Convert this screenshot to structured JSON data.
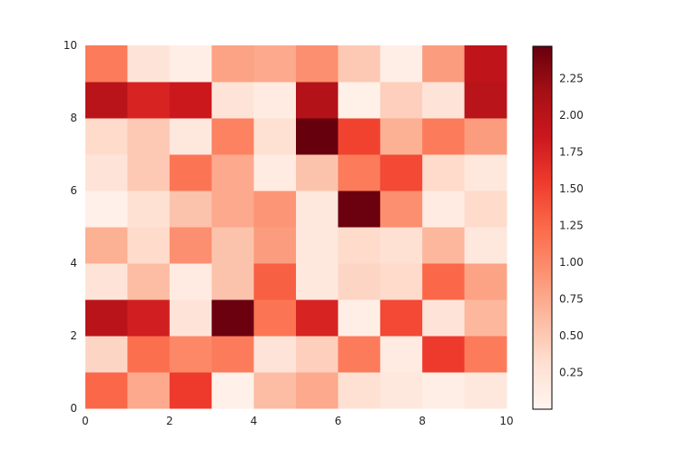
{
  "chart_data": {
    "type": "heatmap",
    "title": "",
    "xlabel": "",
    "ylabel": "",
    "xlim": [
      0,
      10
    ],
    "ylim": [
      0,
      10
    ],
    "x_ticks": [
      "0",
      "2",
      "4",
      "6",
      "8",
      "10"
    ],
    "y_ticks": [
      "0",
      "2",
      "4",
      "6",
      "8",
      "10"
    ],
    "colormap": "Reds",
    "colormap_stops": [
      "#fff5f0",
      "#fee0d2",
      "#fcbba1",
      "#fc9272",
      "#fb6a4a",
      "#ef3b2c",
      "#cb181d",
      "#a50f15",
      "#67000d"
    ],
    "vmin": 0,
    "vmax": 2.47,
    "colorbar_ticks": [
      "0.25",
      "0.50",
      "0.75",
      "1.00",
      "1.25",
      "1.50",
      "1.75",
      "2.00",
      "2.25"
    ],
    "z_rows_from_bottom": [
      [
        1.25,
        0.75,
        1.55,
        0.07,
        0.6,
        0.75,
        0.3,
        0.2,
        0.1,
        0.2
      ],
      [
        0.4,
        1.2,
        1.0,
        1.1,
        0.25,
        0.45,
        1.1,
        0.15,
        1.55,
        1.1
      ],
      [
        2.0,
        1.8,
        0.25,
        2.45,
        1.15,
        1.75,
        0.1,
        1.45,
        0.25,
        0.65
      ],
      [
        0.25,
        0.6,
        0.15,
        0.55,
        1.3,
        0.2,
        0.4,
        0.35,
        1.25,
        0.8
      ],
      [
        0.7,
        0.35,
        0.95,
        0.55,
        0.85,
        0.2,
        0.35,
        0.3,
        0.65,
        0.2
      ],
      [
        0.07,
        0.3,
        0.55,
        0.75,
        0.9,
        0.2,
        2.45,
        0.95,
        0.15,
        0.35
      ],
      [
        0.25,
        0.5,
        1.15,
        0.75,
        0.15,
        0.55,
        1.1,
        1.45,
        0.35,
        0.2
      ],
      [
        0.35,
        0.5,
        0.2,
        1.05,
        0.3,
        2.47,
        1.5,
        0.7,
        1.1,
        0.85
      ],
      [
        2.0,
        1.75,
        1.85,
        0.25,
        0.15,
        2.05,
        0.08,
        0.45,
        0.25,
        2.0
      ],
      [
        1.1,
        0.25,
        0.1,
        0.8,
        0.75,
        0.95,
        0.5,
        0.1,
        0.85,
        1.95
      ]
    ]
  }
}
